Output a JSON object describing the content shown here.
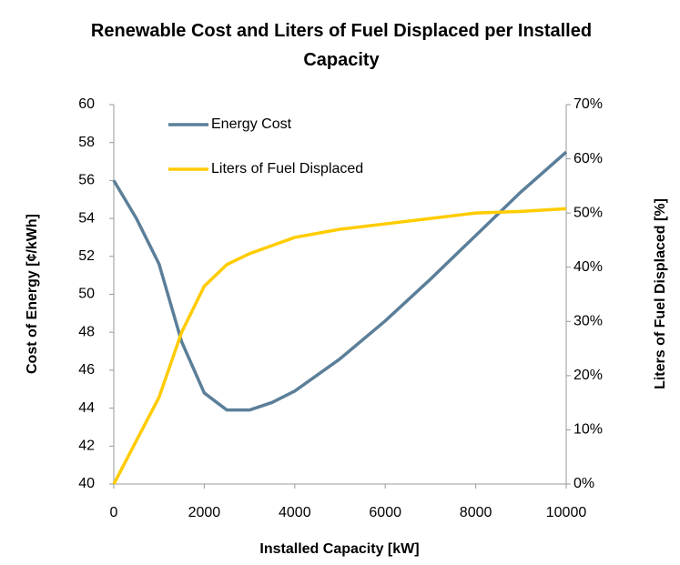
{
  "chart_data": {
    "type": "line",
    "title": "Renewable Cost and Liters of Fuel Displaced per Installed Capacity",
    "x_label": "Installed Capacity [kW]",
    "y_label": "Cost of Energy [¢/kWh]",
    "y2_label": "Liters of Fuel Displaced [%]",
    "x": [
      0,
      500,
      1000,
      1500,
      2000,
      2500,
      3000,
      3500,
      4000,
      5000,
      6000,
      7000,
      8000,
      9000,
      10000
    ],
    "series": [
      {
        "name": "Energy Cost",
        "color": "#5b7f99",
        "values": [
          56,
          54,
          51.6,
          47.5,
          44.8,
          43.9,
          43.9,
          44.3,
          44.9,
          46.6,
          48.6,
          50.8,
          53.1,
          55.4,
          57.5
        ]
      },
      {
        "name": "Liters of Fuel Displaced",
        "color": "#ffcc00",
        "axis": "y2",
        "values": [
          0,
          8,
          16,
          28,
          36.5,
          40.5,
          42.5,
          44,
          45.5,
          47,
          48,
          49,
          50,
          50.3,
          50.8
        ]
      }
    ],
    "xlim": [
      0,
      10000
    ],
    "xticks": [
      0,
      2000,
      4000,
      6000,
      8000,
      10000
    ],
    "ylim": [
      40,
      60
    ],
    "yticks": [
      40,
      42,
      44,
      46,
      48,
      50,
      52,
      54,
      56,
      58,
      60
    ],
    "y2lim": [
      0,
      70
    ],
    "y2ticks": [
      {
        "value": 0,
        "label": "0%"
      },
      {
        "value": 10,
        "label": "10%"
      },
      {
        "value": 20,
        "label": "20%"
      },
      {
        "value": 30,
        "label": "30%"
      },
      {
        "value": 40,
        "label": "40%"
      },
      {
        "value": 50,
        "label": "50%"
      },
      {
        "value": 60,
        "label": "60%"
      },
      {
        "value": 70,
        "label": "70%"
      }
    ],
    "grid": false,
    "legend": "top-left"
  }
}
